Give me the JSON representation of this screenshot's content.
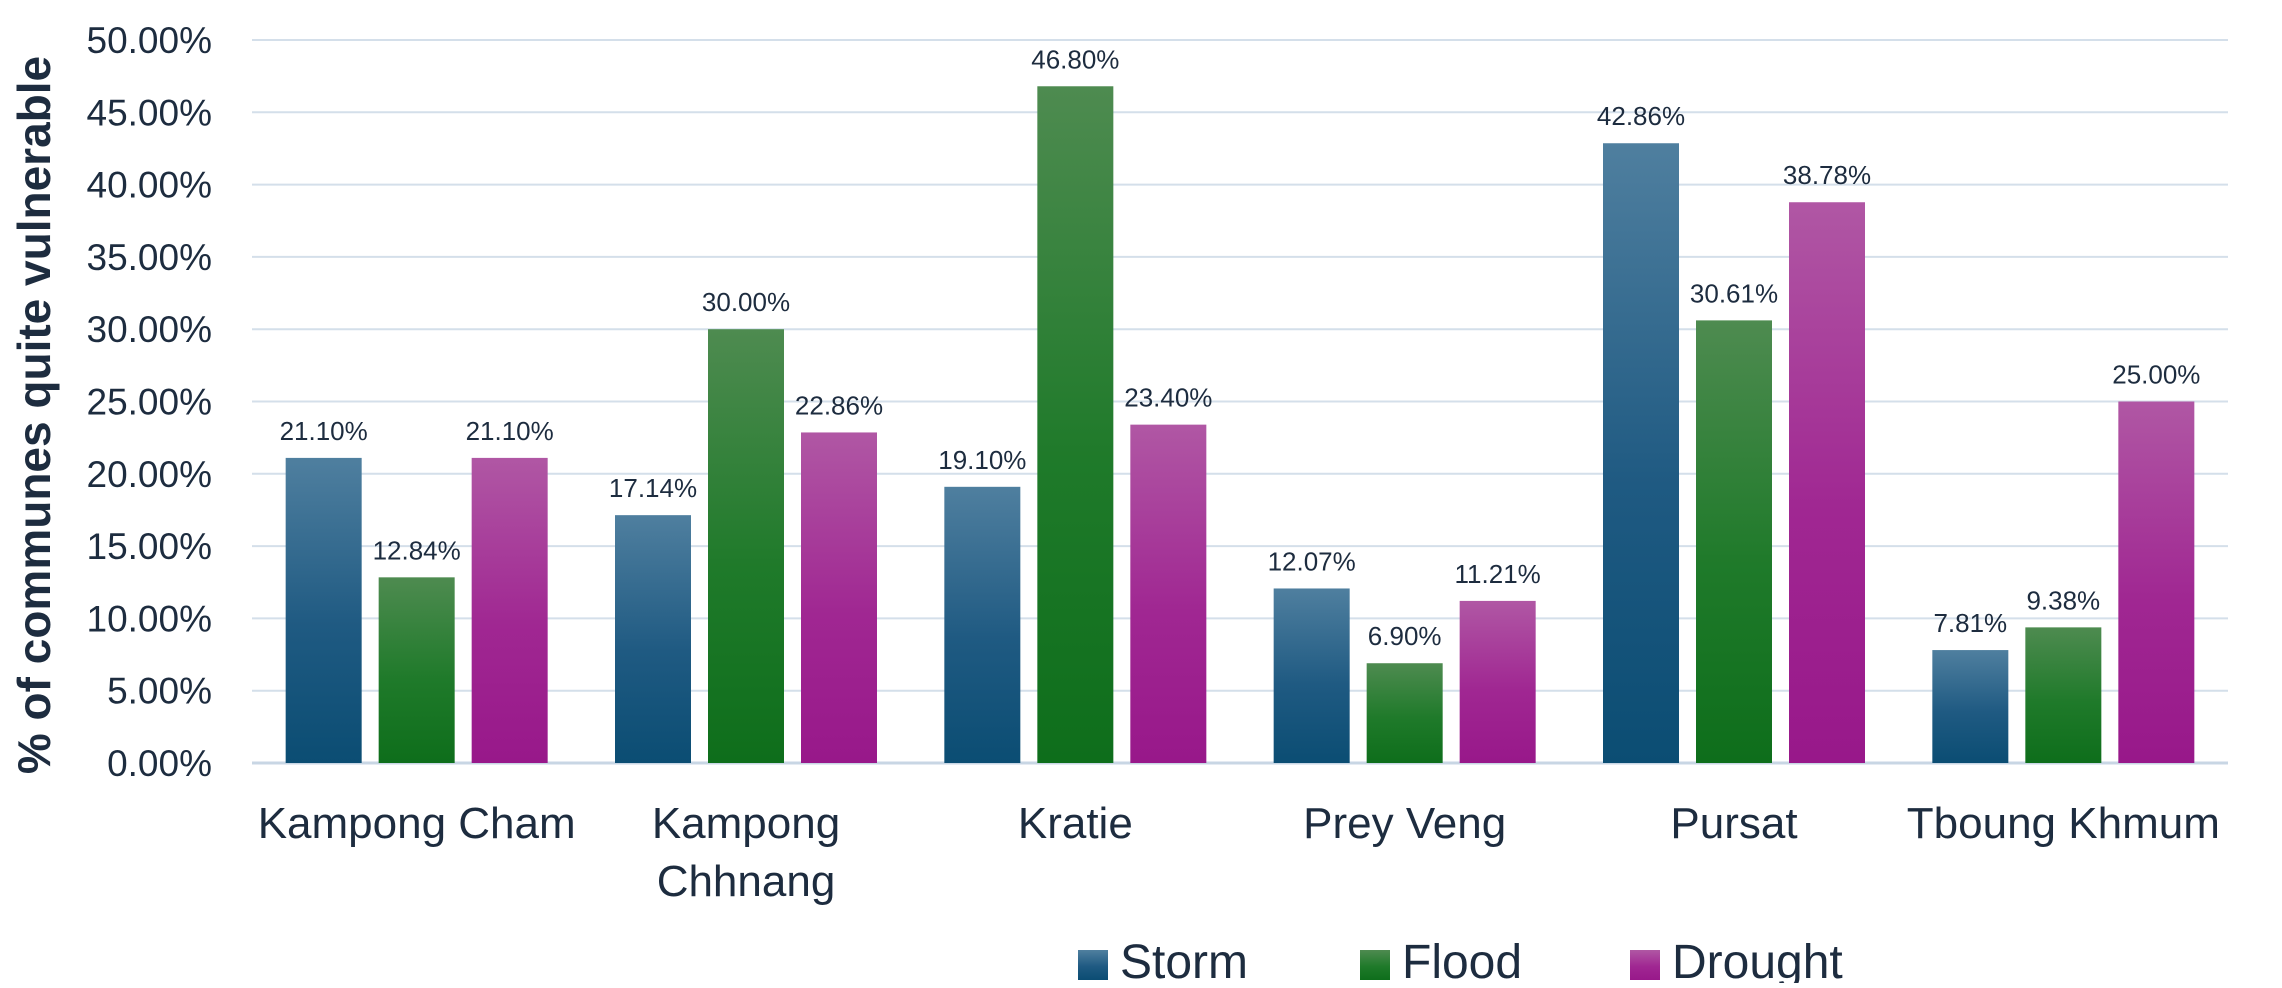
{
  "chart_data": {
    "type": "bar",
    "ylabel": "%  of communes quite vulnerable",
    "xlabel": "",
    "ylim": [
      0,
      50
    ],
    "ytick_step": 5,
    "ytick_format": "percent_2dp",
    "grid": true,
    "legend_position": "bottom-center",
    "categories": [
      "Kampong Cham",
      "Kampong Chhnang",
      "Kratie",
      "Prey Veng",
      "Pursat",
      "Tboung Khmum"
    ],
    "category_label_lines": [
      [
        "Kampong Cham"
      ],
      [
        "Kampong",
        "Chhnang"
      ],
      [
        "Kratie"
      ],
      [
        "Prey Veng"
      ],
      [
        "Pursat"
      ],
      [
        "Tboung Khmum"
      ]
    ],
    "series": [
      {
        "name": "Storm",
        "values": [
          21.1,
          17.14,
          19.1,
          12.07,
          42.86,
          7.81
        ],
        "labels": [
          "21.10%",
          "17.14%",
          "19.10%",
          "12.07%",
          "42.86%",
          "7.81%"
        ],
        "color": "#1f5a82",
        "color_top": "#4f7f9f",
        "color_bottom": "#0b4d73"
      },
      {
        "name": "Flood",
        "values": [
          12.84,
          30.0,
          46.8,
          6.9,
          30.61,
          9.38
        ],
        "labels": [
          "12.84%",
          "30.00%",
          "46.80%",
          "6.90%",
          "30.61%",
          "9.38%"
        ],
        "color": "#1f7a2a",
        "color_top": "#4e8b50",
        "color_bottom": "#0e6e1b"
      },
      {
        "name": "Drought",
        "values": [
          21.1,
          22.86,
          23.4,
          11.21,
          38.78,
          25.0
        ],
        "labels": [
          "21.10%",
          "22.86%",
          "23.40%",
          "11.21%",
          "38.78%",
          "25.00%"
        ],
        "color": "#a02792",
        "color_top": "#b057a4",
        "color_bottom": "#98188a"
      }
    ]
  },
  "colors": {
    "grid": "#d4dfea",
    "axis": "#c8d6e4",
    "text": "#1d2c3f"
  }
}
